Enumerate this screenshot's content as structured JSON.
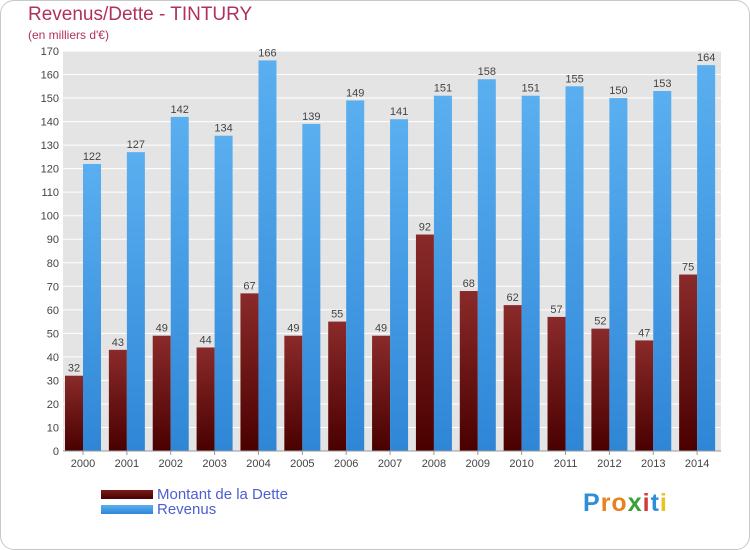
{
  "chart_data": {
    "type": "bar",
    "title": "Revenus/Dette - TINTURY",
    "subtitle": "(en milliers d'€)",
    "categories": [
      "2000",
      "2001",
      "2002",
      "2003",
      "2004",
      "2005",
      "2006",
      "2007",
      "2008",
      "2009",
      "2010",
      "2011",
      "2012",
      "2013",
      "2014"
    ],
    "series": [
      {
        "name": "Montant de la Dette",
        "color": "#6b0f0f",
        "values": [
          32,
          43,
          49,
          44,
          67,
          49,
          55,
          49,
          92,
          68,
          62,
          57,
          52,
          47,
          75
        ]
      },
      {
        "name": "Revenus",
        "color": "#4aa3e6",
        "values": [
          122,
          127,
          142,
          134,
          166,
          139,
          149,
          141,
          151,
          158,
          151,
          155,
          150,
          153,
          164
        ]
      }
    ],
    "ylim": [
      0,
      170
    ],
    "ytick_step": 10,
    "grid": true,
    "legend_position": "bottom-left"
  },
  "logo": {
    "text": "Proxiti",
    "letters": [
      {
        "ch": "P",
        "color": "#2e8fd6"
      },
      {
        "ch": "r",
        "color": "#e8821e"
      },
      {
        "ch": "o",
        "color": "#e8821e"
      },
      {
        "ch": "x",
        "color": "#3aa03a"
      },
      {
        "ch": "i",
        "color": "#d23a3a"
      },
      {
        "ch": "t",
        "color": "#2e8fd6"
      },
      {
        "ch": "i",
        "color": "#e8c21e"
      }
    ]
  }
}
